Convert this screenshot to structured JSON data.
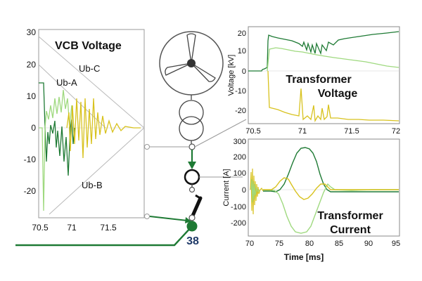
{
  "colors": {
    "dark_green": "#1e7a34",
    "light_green": "#9fd97f",
    "yellow": "#d8c21e",
    "navy": "#1f3a68",
    "gray": "#9a9a9a"
  },
  "vcb_panel": {
    "title": "VCB Voltage",
    "labels": {
      "ub_c": "Ub-C",
      "ub_a": "Ub-A",
      "ub_b": "Ub-B"
    },
    "y_ticks": [
      "30",
      "20",
      "10",
      "0",
      "-10",
      "-20"
    ],
    "x_ticks": [
      "70.5",
      "71",
      "71.5"
    ]
  },
  "tv_panel": {
    "title_line1": "Transformer",
    "title_line2": "Voltage",
    "ylabel": "Voltage [kV]",
    "y_ticks": [
      "20",
      "10",
      "0",
      "-10",
      "-20"
    ],
    "x_ticks": [
      "70.5",
      "71",
      "71.5",
      "72"
    ]
  },
  "tc_panel": {
    "title_line1": "Transformer",
    "title_line2": "Current",
    "ylabel": "Current [A]",
    "xlabel": "Time [ms]",
    "y_ticks": [
      "300",
      "200",
      "100",
      "0",
      "-100",
      "-200"
    ],
    "x_ticks": [
      "70",
      "75",
      "80",
      "85",
      "90",
      "95"
    ]
  },
  "node_label": "38"
}
